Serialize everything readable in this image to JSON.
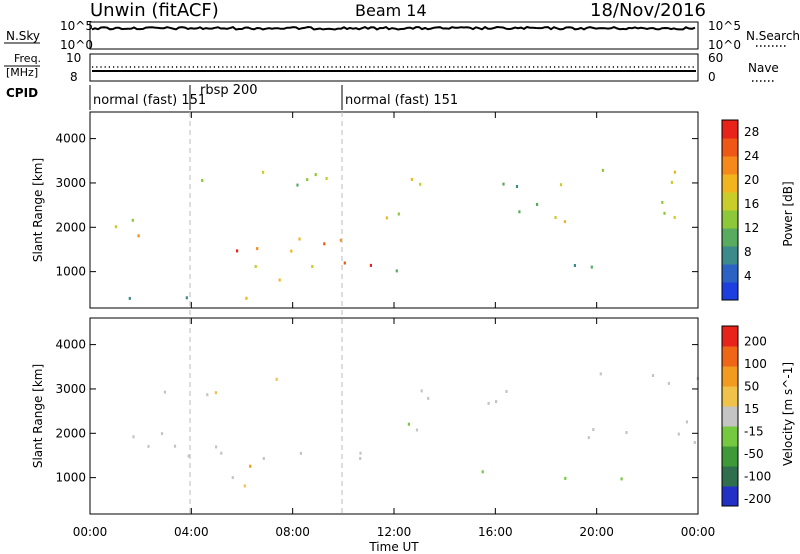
{
  "header": {
    "site": "Unwin (fitACF)",
    "beam": "Beam 14",
    "date": "18/Nov/2016"
  },
  "summary": {
    "nsky_label": "N.Sky",
    "nsearch_label": "N.Search",
    "freq_label_1": "Freq.",
    "freq_label_2": "[MHz]",
    "nave_label": "Nave",
    "cpid_label": "CPID",
    "left_ticks_top": [
      "10^5",
      "10^0"
    ],
    "right_ticks_top": [
      "10^5",
      "10^0"
    ],
    "freq_ticks": [
      "10",
      "8"
    ],
    "nave_ticks": [
      "60",
      "0"
    ],
    "modes": [
      {
        "text": "normal (fast) 151",
        "start": 0.0
      },
      {
        "text": "rbsp 200",
        "start": 4.0
      },
      {
        "text": "normal (fast) 151",
        "start": 10.0
      }
    ]
  },
  "chart_data": [
    {
      "type": "heatmap",
      "title": "Power",
      "xlabel": "Time UT",
      "ylabel": "Slant Range [km]",
      "xlim": [
        0,
        24
      ],
      "ylim": [
        180,
        4600
      ],
      "x_ticks": [
        "00:00",
        "04:00",
        "08:00",
        "12:00",
        "16:00",
        "20:00",
        "00:00"
      ],
      "y_ticks": [
        1000,
        2000,
        3000,
        4000
      ],
      "colorbar_label": "Power [dB]",
      "colorbar_ticks": [
        4,
        8,
        12,
        16,
        20,
        24,
        28
      ],
      "colorbar_range": [
        0,
        30
      ],
      "colors": [
        "#1e3fe0",
        "#2a63c4",
        "#3d8a8a",
        "#58ab5f",
        "#8cc83a",
        "#c9cd2a",
        "#f1b61f",
        "#f58a1a",
        "#ef5716",
        "#e8231a"
      ],
      "scatter_regions": [
        {
          "t": [
            0.2,
            9.9
          ],
          "r": [
            1400,
            1900
          ],
          "v": [
            14,
            26
          ]
        },
        {
          "t": [
            4.5,
            9.9
          ],
          "r": [
            1450,
            1700
          ],
          "v": [
            24,
            30
          ]
        },
        {
          "t": [
            0.0,
            3.5
          ],
          "r": [
            1900,
            2300
          ],
          "v": [
            10,
            18
          ]
        },
        {
          "t": [
            2.0,
            9.5
          ],
          "r": [
            2900,
            3400
          ],
          "v": [
            8,
            18
          ]
        },
        {
          "t": [
            6.0,
            9.5
          ],
          "r": [
            3100,
            3500
          ],
          "v": [
            10,
            18
          ]
        },
        {
          "t": [
            4.5,
            9.5
          ],
          "r": [
            800,
            1300
          ],
          "v": [
            14,
            24
          ]
        },
        {
          "t": [
            0.0,
            4.0
          ],
          "r": [
            250,
            700
          ],
          "v": [
            6,
            12
          ]
        },
        {
          "t": [
            5.5,
            8.0
          ],
          "r": [
            400,
            650
          ],
          "v": [
            16,
            22
          ]
        },
        {
          "t": [
            10.0,
            12.5
          ],
          "r": [
            1000,
            1800
          ],
          "v": [
            22,
            30
          ]
        },
        {
          "t": [
            10.0,
            13.5
          ],
          "r": [
            1950,
            2500
          ],
          "v": [
            14,
            22
          ]
        },
        {
          "t": [
            11.0,
            14.0
          ],
          "r": [
            2800,
            3500
          ],
          "v": [
            14,
            22
          ]
        },
        {
          "t": [
            15.0,
            17.0
          ],
          "r": [
            2100,
            3500
          ],
          "v": [
            6,
            14
          ]
        },
        {
          "t": [
            17.0,
            24.0
          ],
          "r": [
            1800,
            2600
          ],
          "v": [
            10,
            20
          ]
        },
        {
          "t": [
            18.5,
            24.0
          ],
          "r": [
            2800,
            3400
          ],
          "v": [
            12,
            20
          ]
        },
        {
          "t": [
            12.0,
            24.0
          ],
          "r": [
            1000,
            1200
          ],
          "v": [
            6,
            14
          ]
        }
      ]
    },
    {
      "type": "heatmap",
      "title": "Velocity",
      "xlabel": "Time UT",
      "ylabel": "Slant Range [km]",
      "xlim": [
        0,
        24
      ],
      "ylim": [
        180,
        4600
      ],
      "x_ticks": [
        "00:00",
        "04:00",
        "08:00",
        "12:00",
        "16:00",
        "20:00",
        "00:00"
      ],
      "y_ticks": [
        1000,
        2000,
        3000,
        4000
      ],
      "colorbar_label": "Velocity [m s^-1]",
      "colorbar_ticks": [
        200,
        100,
        50,
        15,
        -15,
        -50,
        -100,
        -200
      ],
      "colorbar_range": [
        -250,
        250
      ],
      "colors": [
        "#2230c8",
        "#2f6f4e",
        "#3d9a37",
        "#74c941",
        "#c4c4c4",
        "#f0c24a",
        "#f29b1f",
        "#ef6716",
        "#e8231a"
      ],
      "scatter_regions": [
        {
          "t": [
            0.2,
            9.9
          ],
          "r": [
            1400,
            1900
          ],
          "v": [
            -20,
            20
          ]
        },
        {
          "t": [
            4.5,
            9.9
          ],
          "r": [
            1450,
            1700
          ],
          "v": [
            -15,
            15
          ]
        },
        {
          "t": [
            0.0,
            3.5
          ],
          "r": [
            1900,
            2300
          ],
          "v": [
            -60,
            30
          ]
        },
        {
          "t": [
            2.0,
            9.5
          ],
          "r": [
            2900,
            3400
          ],
          "v": [
            -60,
            10
          ]
        },
        {
          "t": [
            4.5,
            9.5
          ],
          "r": [
            800,
            1300
          ],
          "v": [
            -120,
            -20
          ]
        },
        {
          "t": [
            10.0,
            12.5
          ],
          "r": [
            1000,
            1800
          ],
          "v": [
            -15,
            15
          ]
        },
        {
          "t": [
            10.0,
            13.5
          ],
          "r": [
            1950,
            2500
          ],
          "v": [
            -30,
            60
          ]
        },
        {
          "t": [
            11.0,
            14.0
          ],
          "r": [
            2800,
            3500
          ],
          "v": [
            -40,
            200
          ]
        },
        {
          "t": [
            15.0,
            17.0
          ],
          "r": [
            2100,
            3500
          ],
          "v": [
            -30,
            30
          ]
        },
        {
          "t": [
            17.0,
            24.0
          ],
          "r": [
            1800,
            2600
          ],
          "v": [
            -20,
            20
          ]
        },
        {
          "t": [
            18.5,
            24.0
          ],
          "r": [
            2800,
            3400
          ],
          "v": [
            -20,
            20
          ]
        },
        {
          "t": [
            12.0,
            24.0
          ],
          "r": [
            1000,
            1200
          ],
          "v": [
            -15,
            60
          ]
        }
      ]
    }
  ]
}
